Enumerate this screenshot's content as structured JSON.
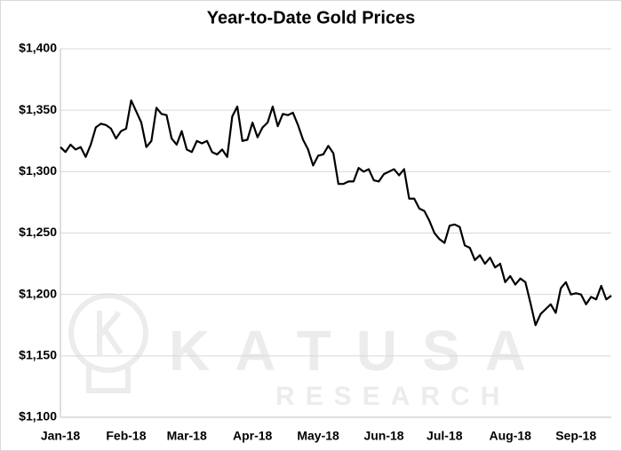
{
  "chart_data": {
    "type": "line",
    "title": "Year-to-Date Gold Prices",
    "watermark": [
      "KATUSA",
      "RESEARCH"
    ],
    "categories": [
      "Jan-18",
      null,
      null,
      null,
      null,
      null,
      null,
      null,
      null,
      null,
      null,
      null,
      null,
      "Feb-18",
      null,
      null,
      null,
      null,
      null,
      null,
      null,
      null,
      null,
      null,
      null,
      "Mar-18",
      null,
      null,
      null,
      null,
      null,
      null,
      null,
      null,
      null,
      null,
      null,
      null,
      "Apr-18",
      null,
      null,
      null,
      null,
      null,
      null,
      null,
      null,
      null,
      null,
      null,
      null,
      "May-18",
      null,
      null,
      null,
      null,
      null,
      null,
      null,
      null,
      null,
      null,
      null,
      null,
      "Jun-18",
      null,
      null,
      null,
      null,
      null,
      null,
      null,
      null,
      null,
      null,
      null,
      "Jul-18",
      null,
      null,
      null,
      null,
      null,
      null,
      null,
      null,
      null,
      null,
      null,
      null,
      "Aug-18",
      null,
      null,
      null,
      null,
      null,
      null,
      null,
      null,
      null,
      null,
      null,
      null,
      "Sep-18",
      null,
      null,
      null,
      null,
      null,
      null,
      null
    ],
    "values": [
      1320,
      1316,
      1322,
      1318,
      1320,
      1312,
      1322,
      1336,
      1339,
      1338,
      1335,
      1327,
      1333,
      1335,
      1358,
      1349,
      1340,
      1320,
      1325,
      1352,
      1347,
      1346,
      1327,
      1322,
      1333,
      1318,
      1316,
      1325,
      1323,
      1325,
      1316,
      1314,
      1318,
      1312,
      1345,
      1353,
      1325,
      1326,
      1340,
      1328,
      1336,
      1340,
      1353,
      1337,
      1347,
      1346,
      1348,
      1338,
      1326,
      1318,
      1305,
      1313,
      1314,
      1321,
      1315,
      1290,
      1290,
      1292,
      1292,
      1303,
      1300,
      1302,
      1293,
      1292,
      1298,
      1300,
      1302,
      1297,
      1302,
      1278,
      1278,
      1270,
      1268,
      1260,
      1250,
      1245,
      1242,
      1256,
      1257,
      1255,
      1240,
      1238,
      1228,
      1232,
      1225,
      1230,
      1222,
      1225,
      1210,
      1215,
      1208,
      1213,
      1210,
      1193,
      1175,
      1184,
      1188,
      1192,
      1185,
      1205,
      1210,
      1200,
      1201,
      1200,
      1192,
      1198,
      1196,
      1207,
      1196,
      1199
    ],
    "color": "#000000",
    "ylim": [
      1100,
      1400
    ],
    "yticks": [
      {
        "value": 1100,
        "label": "$1,100"
      },
      {
        "value": 1150,
        "label": "$1,150"
      },
      {
        "value": 1200,
        "label": "$1,200"
      },
      {
        "value": 1250,
        "label": "$1,250"
      },
      {
        "value": 1300,
        "label": "$1,300"
      },
      {
        "value": 1350,
        "label": "$1,350"
      },
      {
        "value": 1400,
        "label": "$1,400"
      }
    ],
    "grid": true
  }
}
